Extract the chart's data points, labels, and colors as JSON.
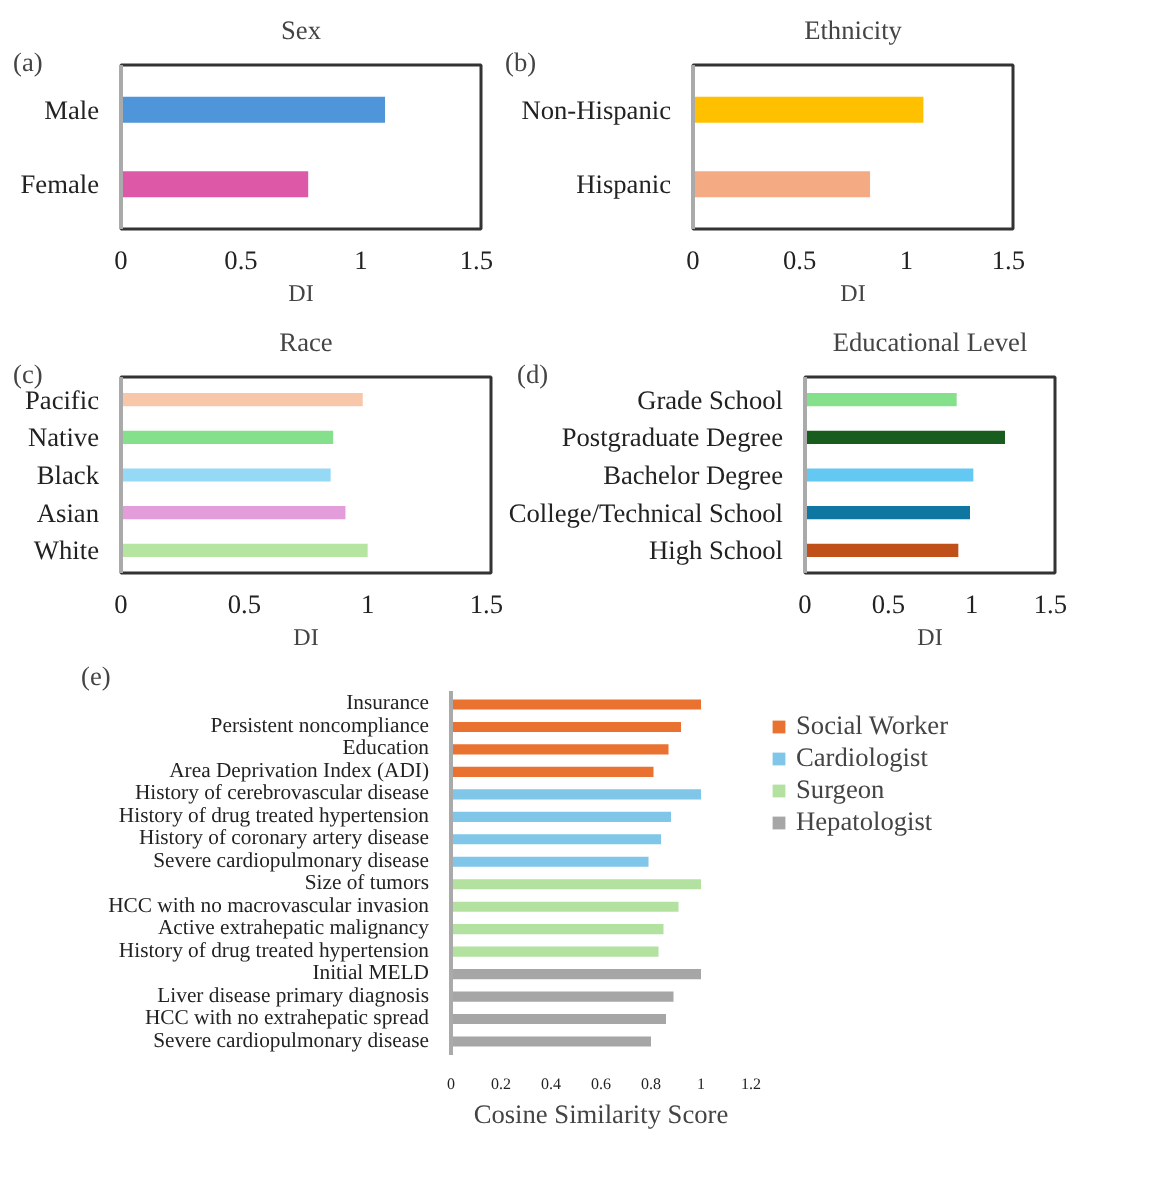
{
  "chart_data": [
    {
      "type": "bar",
      "orientation": "horizontal",
      "title": "Sex",
      "xlabel": "DI",
      "annotations": [
        "(a)"
      ],
      "categories": [
        "Male",
        "Female"
      ],
      "values": [
        1.1,
        0.78
      ],
      "colors": [
        "#4e95d9",
        "#dd59a8"
      ],
      "xlim": [
        0,
        1.5
      ],
      "xticks": [
        0,
        0.5,
        1,
        1.5
      ],
      "grid": false
    },
    {
      "type": "bar",
      "orientation": "horizontal",
      "title": "Ethnicity",
      "xlabel": "DI",
      "annotations": [
        "(b)"
      ],
      "categories": [
        "Non-Hispanic",
        "Hispanic"
      ],
      "values": [
        1.08,
        0.83
      ],
      "colors": [
        "#ffc000",
        "#f4ab84"
      ],
      "xlim": [
        0,
        1.5
      ],
      "xticks": [
        0,
        0.5,
        1,
        1.5
      ],
      "grid": false
    },
    {
      "type": "bar",
      "orientation": "horizontal",
      "title": "Race",
      "xlabel": "DI",
      "annotations": [
        "(c)"
      ],
      "categories": [
        "Pacific",
        "Native",
        "Black",
        "Asian",
        "White"
      ],
      "values": [
        0.98,
        0.86,
        0.85,
        0.91,
        1.0
      ],
      "colors": [
        "#f8c6a8",
        "#85e08c",
        "#96d9f5",
        "#e39ddb",
        "#b5e5a0"
      ],
      "xlim": [
        0,
        1.5
      ],
      "xticks": [
        0,
        0.5,
        1,
        1.5
      ],
      "grid": false
    },
    {
      "type": "bar",
      "orientation": "horizontal",
      "title": "Educational Level",
      "xlabel": "DI",
      "annotations": [
        "(d)"
      ],
      "categories": [
        "Grade School",
        "Postgraduate Degree",
        "Bachelor Degree",
        "College/Technical School",
        "High School"
      ],
      "values": [
        0.91,
        1.2,
        1.01,
        0.99,
        0.92
      ],
      "colors": [
        "#85e08c",
        "#185c1e",
        "#63c8f2",
        "#0e76a0",
        "#c0501a"
      ],
      "xlim": [
        0,
        1.5
      ],
      "xticks": [
        0,
        0.5,
        1,
        1.5
      ],
      "grid": false
    },
    {
      "type": "bar",
      "orientation": "horizontal",
      "xlabel": "Cosine Similarity Score",
      "annotations": [
        "(e)"
      ],
      "categories": [
        "Insurance",
        "Persistent noncompliance",
        "Education",
        "Area Deprivation Index (ADI)",
        "History of cerebrovascular disease",
        "History of drug treated hypertension",
        "History of coronary artery disease",
        "Severe cardiopulmonary disease",
        "Size of tumors",
        "HCC with no macrovascular invasion",
        "Active extrahepatic malignancy",
        "History of drug treated hypertension",
        "Initial MELD",
        "Liver disease primary diagnosis",
        "HCC with no extrahepatic spread",
        "Severe cardiopulmonary disease"
      ],
      "series": [
        {
          "name": "Social Worker",
          "color": "#ea7231",
          "values": [
            1.0,
            0.92,
            0.87,
            0.81,
            null,
            null,
            null,
            null,
            null,
            null,
            null,
            null,
            null,
            null,
            null,
            null
          ]
        },
        {
          "name": "Cardiologist",
          "color": "#80c6e8",
          "values": [
            null,
            null,
            null,
            null,
            1.0,
            0.88,
            0.84,
            0.79,
            null,
            null,
            null,
            null,
            null,
            null,
            null,
            null
          ]
        },
        {
          "name": "Surgeon",
          "color": "#b3e2a0",
          "values": [
            null,
            null,
            null,
            null,
            null,
            null,
            null,
            null,
            1.0,
            0.91,
            0.85,
            0.83,
            null,
            null,
            null,
            null
          ]
        },
        {
          "name": "Hepatologist",
          "color": "#a6a6a6",
          "values": [
            null,
            null,
            null,
            null,
            null,
            null,
            null,
            null,
            null,
            null,
            null,
            null,
            1.0,
            0.89,
            0.86,
            0.8
          ]
        }
      ],
      "xlim": [
        0,
        1.2
      ],
      "xticks": [
        0,
        0.2,
        0.4,
        0.6,
        0.8,
        1,
        1.2
      ],
      "grid": false,
      "legend": "right"
    }
  ]
}
